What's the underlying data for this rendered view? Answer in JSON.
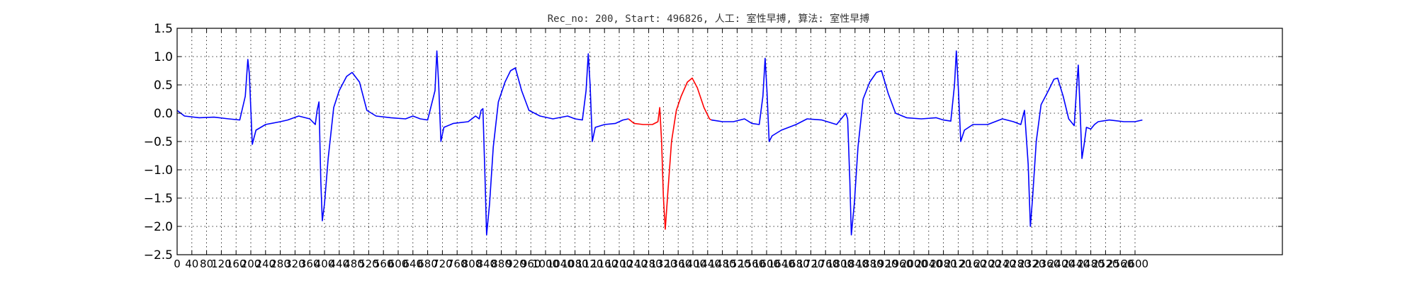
{
  "chart_data": {
    "type": "line",
    "title": "Rec_no: 200, Start: 496826, 人工: 室性早搏, 算法: 室性早搏",
    "xlabel": "",
    "ylabel": "",
    "xlim": [
      0,
      3000
    ],
    "ylim": [
      -2.5,
      1.5
    ],
    "grid": true,
    "yticks": [
      "1.5",
      "1.0",
      "0.5",
      "0.0",
      "−0.5",
      "−1.0",
      "−1.5",
      "−2.0",
      "−2.5"
    ],
    "xticks": [
      "0",
      "40",
      "80",
      "120",
      "160",
      "200",
      "240",
      "280",
      "320",
      "360",
      "400",
      "440",
      "480",
      "520",
      "560",
      "600",
      "640",
      "680",
      "720",
      "760",
      "800",
      "840",
      "880",
      "920",
      "960",
      "1000",
      "1040",
      "1080",
      "1120",
      "1160",
      "1200",
      "1240",
      "1280",
      "1320",
      "1360",
      "1400",
      "1440",
      "1480",
      "1520",
      "1560",
      "1600",
      "1640",
      "1680",
      "1720",
      "1760",
      "1800",
      "1840",
      "1880",
      "1920",
      "1960",
      "2000",
      "2040",
      "2080",
      "2120",
      "2160",
      "2200",
      "2240",
      "2280",
      "2320",
      "2360",
      "2400",
      "2440",
      "2480",
      "2520",
      "2560",
      "2600"
    ],
    "series": [
      {
        "color": "#0000ff",
        "points": [
          [
            0,
            0.05
          ],
          [
            20,
            -0.05
          ],
          [
            60,
            -0.08
          ],
          [
            100,
            -0.07
          ],
          [
            140,
            -0.1
          ],
          [
            170,
            -0.12
          ],
          [
            185,
            0.3
          ],
          [
            192,
            0.95
          ],
          [
            196,
            0.7
          ],
          [
            204,
            -0.55
          ],
          [
            214,
            -0.3
          ],
          [
            240,
            -0.2
          ],
          [
            280,
            -0.15
          ],
          [
            300,
            -0.12
          ],
          [
            330,
            -0.05
          ],
          [
            360,
            -0.1
          ],
          [
            375,
            -0.2
          ],
          [
            380,
            0.05
          ],
          [
            385,
            0.2
          ],
          [
            390,
            -1.2
          ],
          [
            394,
            -1.9
          ],
          [
            400,
            -1.6
          ],
          [
            410,
            -0.8
          ],
          [
            425,
            0.1
          ],
          [
            440,
            0.4
          ],
          [
            460,
            0.65
          ],
          [
            475,
            0.72
          ],
          [
            495,
            0.55
          ],
          [
            515,
            0.05
          ],
          [
            540,
            -0.05
          ],
          [
            580,
            -0.08
          ],
          [
            620,
            -0.1
          ],
          [
            640,
            -0.05
          ],
          [
            660,
            -0.1
          ],
          [
            680,
            -0.12
          ],
          [
            700,
            0.4
          ],
          [
            705,
            1.1
          ],
          [
            710,
            0.5
          ],
          [
            716,
            -0.5
          ],
          [
            724,
            -0.25
          ],
          [
            750,
            -0.18
          ],
          [
            790,
            -0.15
          ],
          [
            810,
            -0.05
          ],
          [
            820,
            -0.1
          ],
          [
            825,
            0.05
          ],
          [
            830,
            0.08
          ],
          [
            836,
            -1.2
          ],
          [
            840,
            -2.15
          ],
          [
            848,
            -1.6
          ],
          [
            858,
            -0.6
          ],
          [
            872,
            0.2
          ],
          [
            890,
            0.55
          ],
          [
            905,
            0.75
          ],
          [
            918,
            0.8
          ],
          [
            935,
            0.4
          ],
          [
            955,
            0.05
          ],
          [
            985,
            -0.05
          ],
          [
            1020,
            -0.1
          ],
          [
            1060,
            -0.05
          ],
          [
            1080,
            -0.1
          ],
          [
            1100,
            -0.12
          ],
          [
            1110,
            0.4
          ],
          [
            1116,
            1.05
          ],
          [
            1121,
            0.5
          ],
          [
            1127,
            -0.5
          ],
          [
            1135,
            -0.25
          ],
          [
            1160,
            -0.2
          ],
          [
            1190,
            -0.18
          ],
          [
            1210,
            -0.12
          ],
          [
            1225,
            -0.1
          ]
        ]
      },
      {
        "color": "#ff0000",
        "points": [
          [
            1225,
            -0.1
          ],
          [
            1240,
            -0.18
          ],
          [
            1265,
            -0.2
          ],
          [
            1290,
            -0.2
          ],
          [
            1305,
            -0.15
          ],
          [
            1310,
            0.1
          ],
          [
            1315,
            -0.5
          ],
          [
            1320,
            -1.5
          ],
          [
            1325,
            -2.05
          ],
          [
            1332,
            -1.4
          ],
          [
            1342,
            -0.5
          ],
          [
            1355,
            0.05
          ],
          [
            1368,
            0.3
          ],
          [
            1385,
            0.55
          ],
          [
            1398,
            0.62
          ],
          [
            1412,
            0.45
          ],
          [
            1430,
            0.1
          ],
          [
            1445,
            -0.1
          ],
          [
            1450,
            -0.12
          ]
        ]
      },
      {
        "color": "#0000ff",
        "points": [
          [
            1450,
            -0.12
          ],
          [
            1480,
            -0.15
          ],
          [
            1510,
            -0.15
          ],
          [
            1540,
            -0.1
          ],
          [
            1560,
            -0.18
          ],
          [
            1580,
            -0.2
          ],
          [
            1590,
            0.3
          ],
          [
            1596,
            0.97
          ],
          [
            1601,
            0.4
          ],
          [
            1607,
            -0.5
          ],
          [
            1615,
            -0.4
          ],
          [
            1640,
            -0.3
          ],
          [
            1680,
            -0.2
          ],
          [
            1710,
            -0.1
          ],
          [
            1750,
            -0.12
          ],
          [
            1790,
            -0.2
          ],
          [
            1815,
            0.0
          ],
          [
            1820,
            -0.1
          ],
          [
            1826,
            -1.2
          ],
          [
            1830,
            -2.15
          ],
          [
            1838,
            -1.6
          ],
          [
            1848,
            -0.6
          ],
          [
            1862,
            0.25
          ],
          [
            1880,
            0.55
          ],
          [
            1898,
            0.72
          ],
          [
            1912,
            0.75
          ],
          [
            1930,
            0.35
          ],
          [
            1950,
            0.0
          ],
          [
            1980,
            -0.08
          ],
          [
            2020,
            -0.1
          ],
          [
            2060,
            -0.08
          ],
          [
            2080,
            -0.12
          ],
          [
            2100,
            -0.14
          ],
          [
            2110,
            0.5
          ],
          [
            2115,
            1.1
          ],
          [
            2120,
            0.5
          ],
          [
            2127,
            -0.5
          ],
          [
            2137,
            -0.3
          ],
          [
            2160,
            -0.2
          ],
          [
            2200,
            -0.2
          ],
          [
            2240,
            -0.1
          ],
          [
            2270,
            -0.15
          ],
          [
            2290,
            -0.2
          ],
          [
            2300,
            0.05
          ],
          [
            2310,
            -0.9
          ],
          [
            2316,
            -2.0
          ],
          [
            2322,
            -1.5
          ],
          [
            2332,
            -0.5
          ],
          [
            2345,
            0.15
          ],
          [
            2365,
            0.4
          ],
          [
            2380,
            0.6
          ],
          [
            2390,
            0.62
          ],
          [
            2405,
            0.3
          ],
          [
            2420,
            -0.1
          ],
          [
            2435,
            -0.22
          ],
          [
            2442,
            0.5
          ],
          [
            2446,
            0.85
          ],
          [
            2450,
            0.2
          ],
          [
            2456,
            -0.8
          ],
          [
            2462,
            -0.55
          ],
          [
            2468,
            -0.25
          ],
          [
            2480,
            -0.28
          ],
          [
            2490,
            -0.2
          ],
          [
            2500,
            -0.15
          ],
          [
            2530,
            -0.12
          ],
          [
            2570,
            -0.15
          ],
          [
            2600,
            -0.15
          ],
          [
            2620,
            -0.12
          ]
        ]
      }
    ]
  }
}
